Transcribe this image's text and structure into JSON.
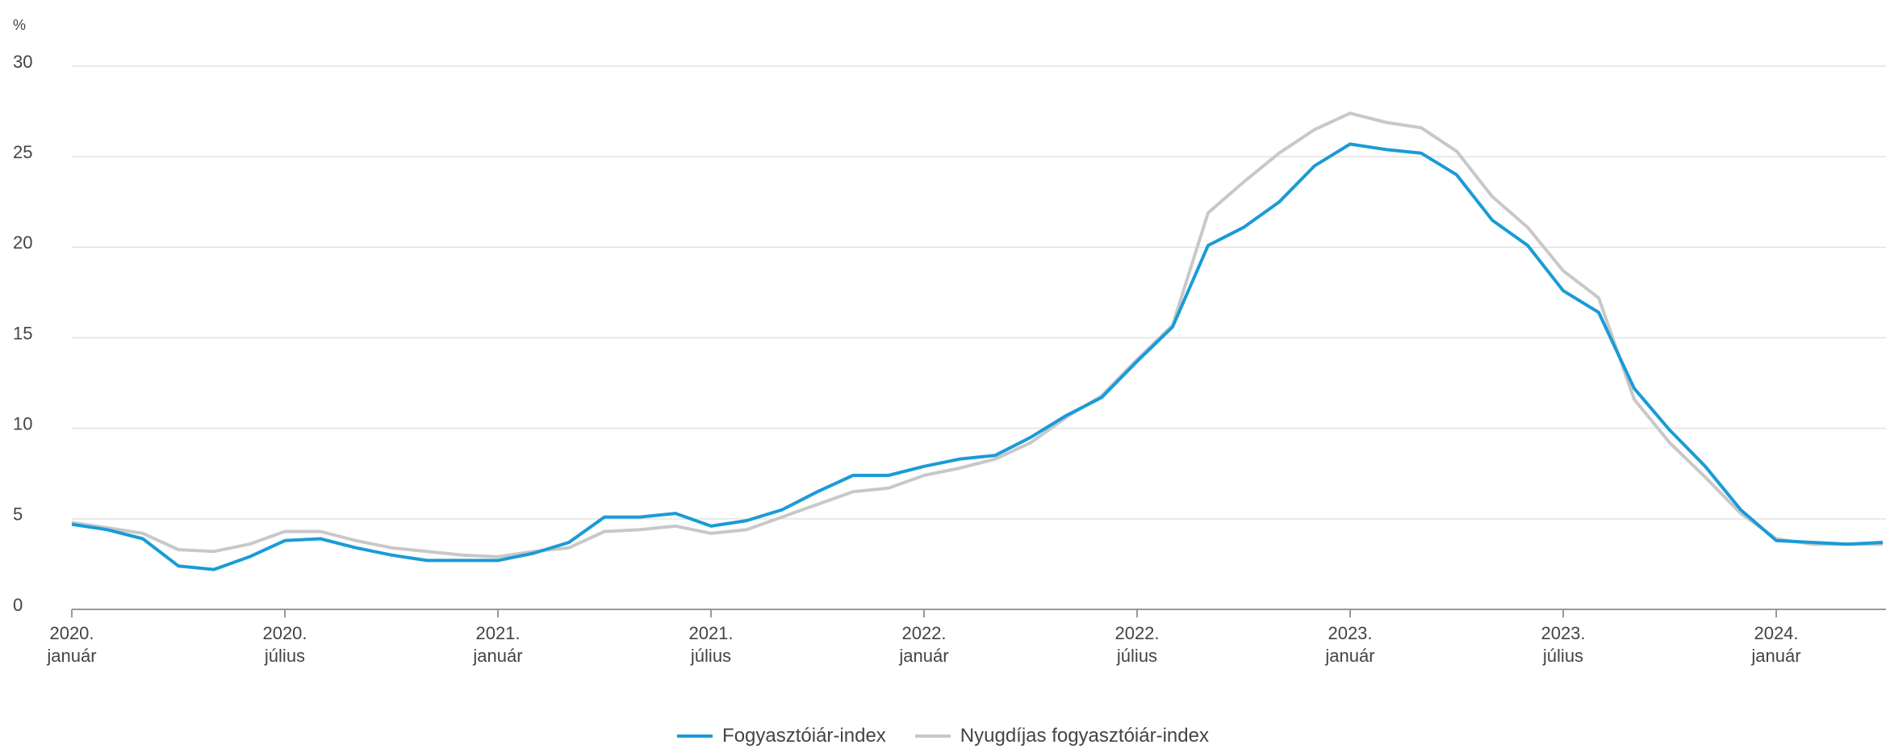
{
  "chart_data": {
    "type": "line",
    "y_label": "%",
    "categories": [
      "2020. január",
      null,
      null,
      null,
      null,
      null,
      "2020. július",
      null,
      null,
      null,
      null,
      null,
      "2021. január",
      null,
      null,
      null,
      null,
      null,
      "2021. július",
      null,
      null,
      null,
      null,
      null,
      "2022. január",
      null,
      null,
      null,
      null,
      null,
      "2022. július",
      null,
      null,
      null,
      null,
      null,
      "2023. január",
      null,
      null,
      null,
      null,
      null,
      "2023. július",
      null,
      null,
      null,
      null,
      null,
      "2024. január",
      null,
      null,
      null
    ],
    "series": [
      {
        "name": "Fogyasztóiár-index",
        "color": "#1a9bd7",
        "values": [
          4.7,
          4.4,
          3.9,
          2.4,
          2.2,
          2.9,
          3.8,
          3.9,
          3.4,
          3.0,
          2.7,
          2.7,
          2.7,
          3.1,
          3.7,
          5.1,
          5.1,
          5.3,
          4.6,
          4.9,
          5.5,
          6.5,
          7.4,
          7.4,
          7.9,
          8.3,
          8.5,
          9.5,
          10.7,
          11.7,
          13.7,
          15.6,
          20.1,
          21.1,
          22.5,
          24.5,
          25.7,
          25.4,
          25.2,
          24.0,
          21.5,
          20.1,
          17.6,
          16.4,
          12.2,
          9.9,
          7.9,
          5.5,
          3.8,
          3.7,
          3.6,
          3.7
        ]
      },
      {
        "name": "Nyugdíjas fogyasztóiár-index",
        "color": "#c8c8c8",
        "values": [
          4.8,
          4.5,
          4.2,
          3.3,
          3.2,
          3.6,
          4.3,
          4.3,
          3.8,
          3.4,
          3.2,
          3.0,
          2.9,
          3.2,
          3.4,
          4.3,
          4.4,
          4.6,
          4.2,
          4.4,
          5.1,
          5.8,
          6.5,
          6.7,
          7.4,
          7.8,
          8.3,
          9.2,
          10.6,
          11.8,
          13.8,
          15.7,
          21.9,
          23.6,
          25.2,
          26.5,
          27.4,
          26.9,
          26.6,
          25.3,
          22.8,
          21.1,
          18.7,
          17.2,
          11.6,
          9.2,
          7.3,
          5.3,
          3.9,
          3.6,
          3.6,
          3.6
        ]
      }
    ],
    "ylim": [
      0,
      30
    ],
    "yticks": [
      0,
      5,
      10,
      15,
      20,
      25,
      30
    ],
    "grid": true,
    "legend": "bottom"
  }
}
